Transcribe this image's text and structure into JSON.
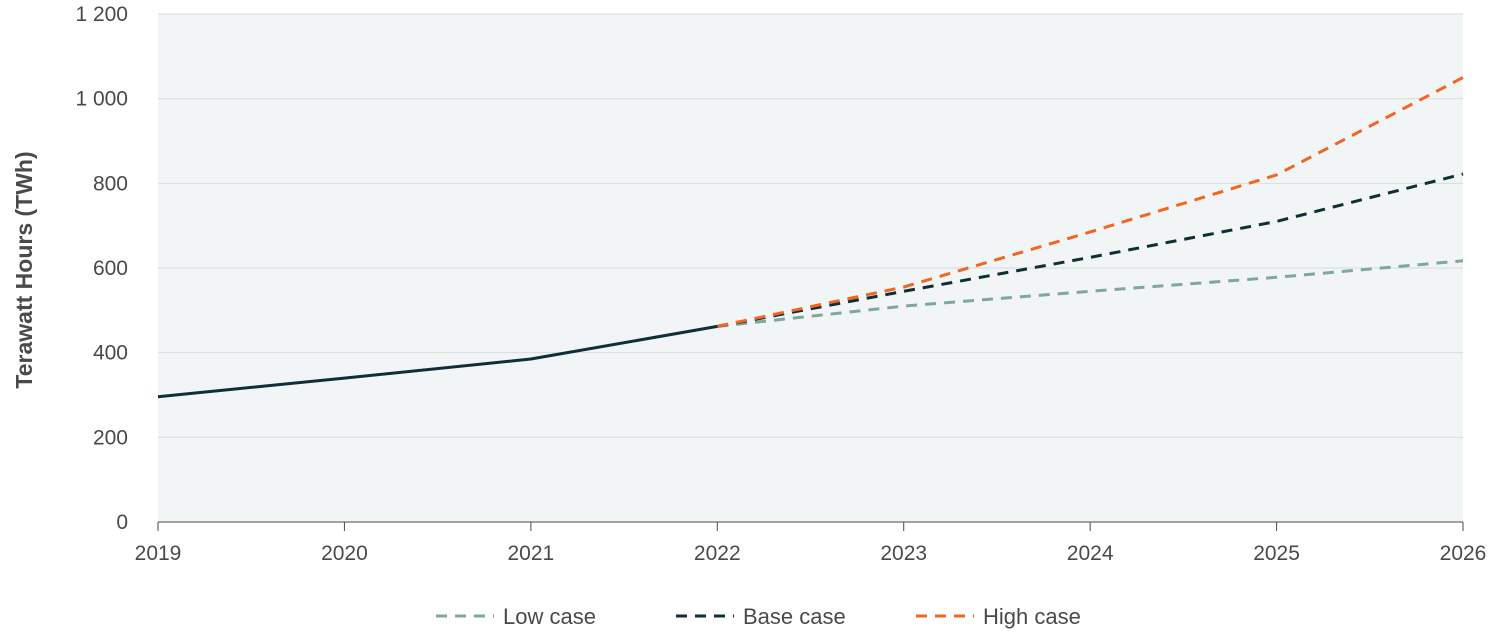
{
  "chart_data": {
    "type": "line",
    "ylabel": "Terawatt Hours (TWh)",
    "xlabel": "",
    "title": "",
    "xlim": [
      2019,
      2026
    ],
    "ylim": [
      0,
      1200
    ],
    "x_ticks": [
      "2019",
      "2020",
      "2021",
      "2022",
      "2023",
      "2024",
      "2025",
      "2026"
    ],
    "y_ticks": [
      {
        "value": 0,
        "label": "0"
      },
      {
        "value": 200,
        "label": "200"
      },
      {
        "value": 400,
        "label": "400"
      },
      {
        "value": 600,
        "label": "600"
      },
      {
        "value": 800,
        "label": "800"
      },
      {
        "value": 1000,
        "label": "1 000"
      },
      {
        "value": 1200,
        "label": "1 200"
      }
    ],
    "grid": "horizontal",
    "legend_position": "bottom-center",
    "historical": {
      "x": [
        2019,
        2020,
        2021,
        2022
      ],
      "y": [
        296,
        340,
        385,
        462
      ],
      "color": "#0e2f36"
    },
    "series": [
      {
        "name": "Low case",
        "color": "#7fa6a0",
        "x": [
          2022,
          2023,
          2024,
          2025,
          2026
        ],
        "y": [
          462,
          510,
          545,
          578,
          617
        ]
      },
      {
        "name": "Base case",
        "color": "#0e2f36",
        "x": [
          2022,
          2023,
          2024,
          2025,
          2026
        ],
        "y": [
          462,
          545,
          625,
          710,
          822
        ]
      },
      {
        "name": "High case",
        "color": "#f26522",
        "x": [
          2022,
          2023,
          2024,
          2025,
          2026
        ],
        "y": [
          462,
          555,
          685,
          820,
          1050
        ]
      }
    ]
  },
  "colors": {
    "plot_background": "#f1f5f5",
    "gridline": "#d5dcdc",
    "axis": "#4a4a4a"
  }
}
